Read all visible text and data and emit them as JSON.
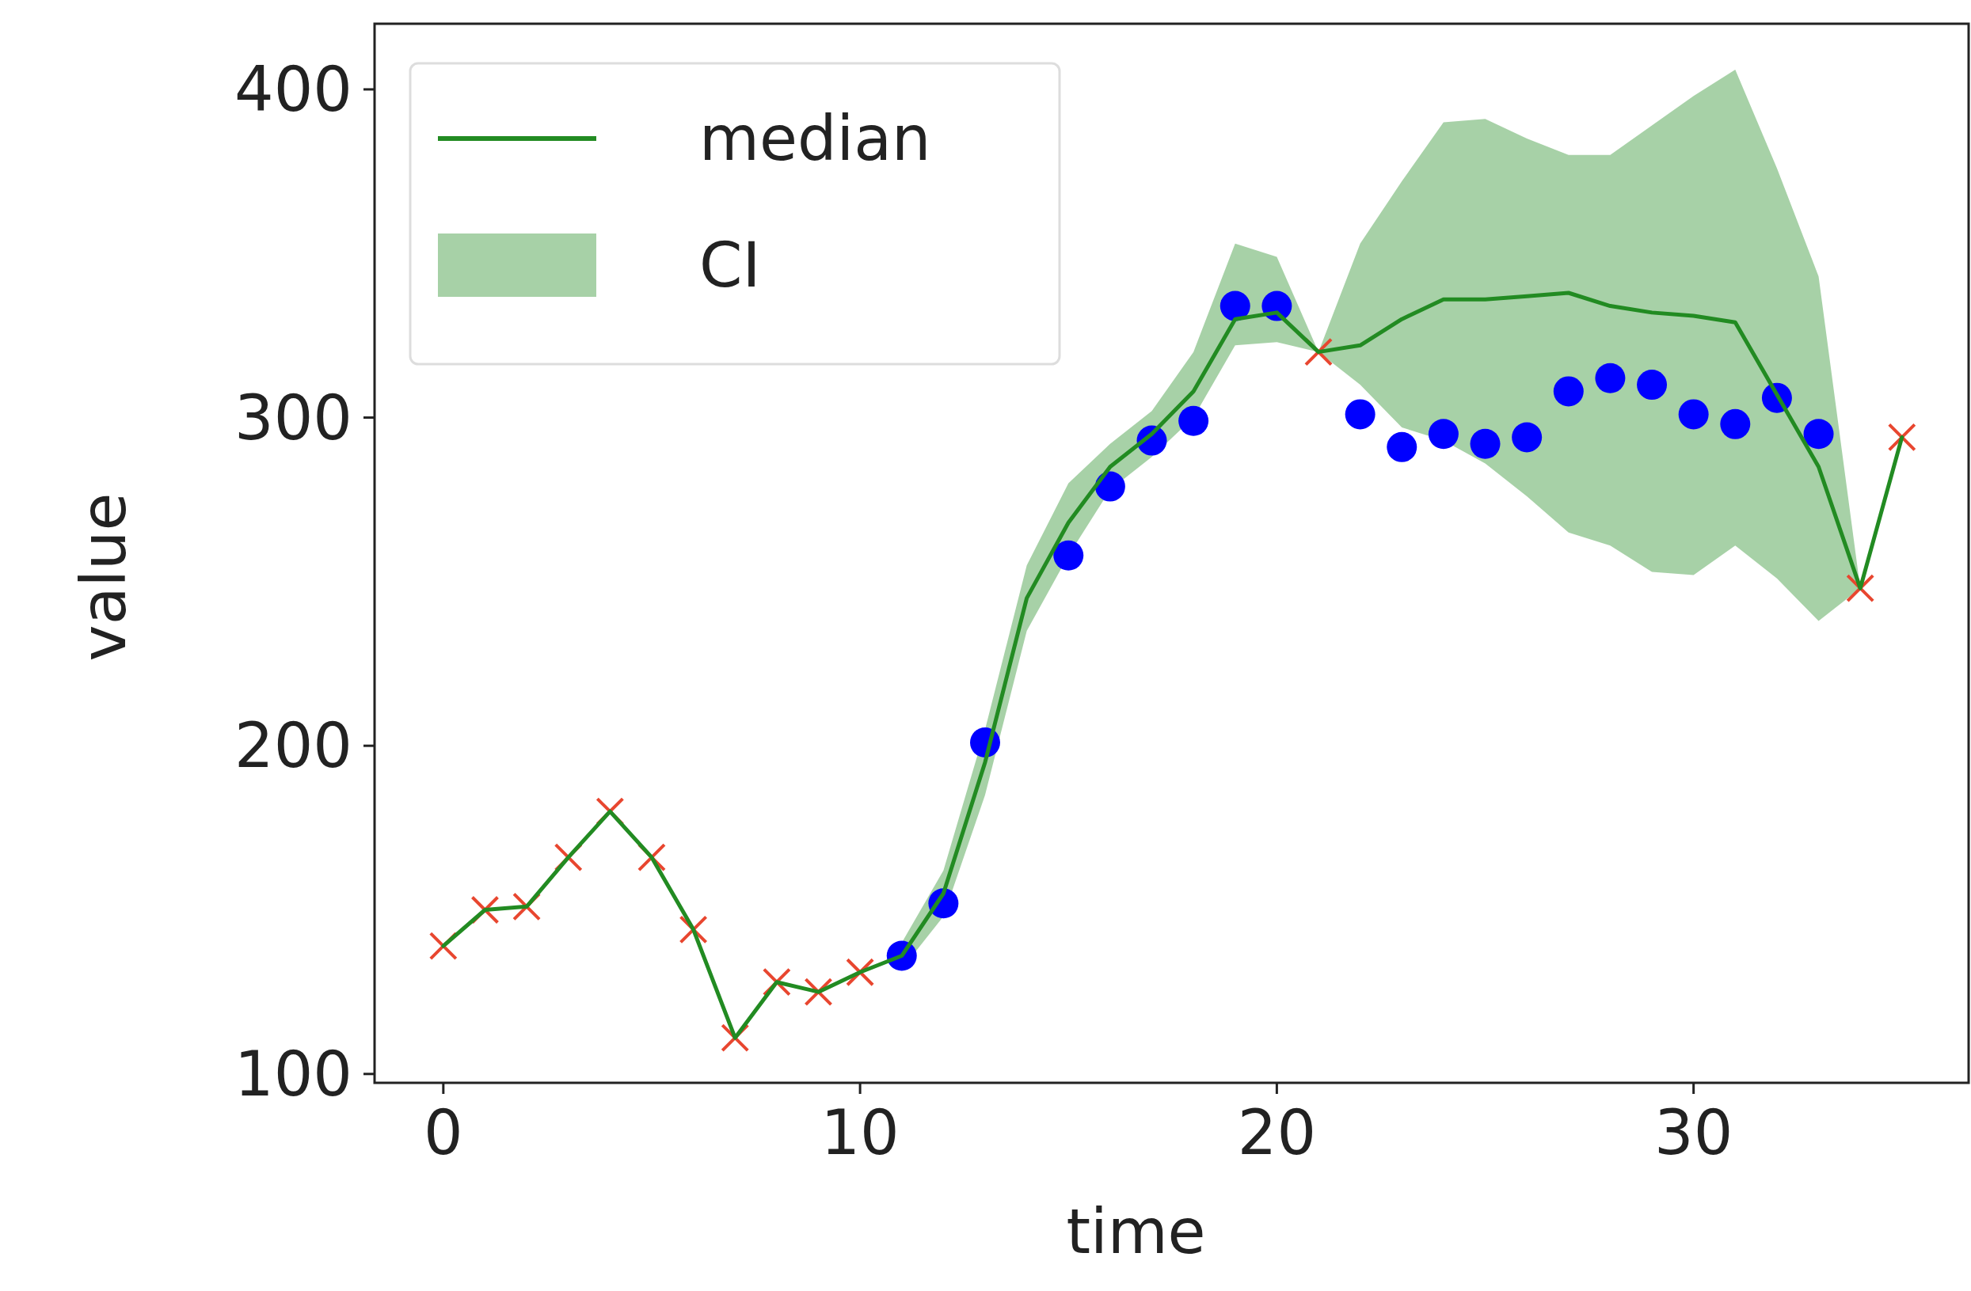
{
  "chart_data": {
    "type": "line",
    "xlabel": "time",
    "ylabel": "value",
    "xlim": [
      -1.65,
      36.6
    ],
    "ylim": [
      97.3,
      420
    ],
    "xticks": [
      0,
      10,
      20,
      30
    ],
    "yticks": [
      100,
      200,
      300,
      400
    ],
    "grid": false,
    "legend": "top left",
    "annotations": [
      "CI"
    ],
    "series": [
      {
        "type": "scatter",
        "color": "#0000ff",
        "marker": "circle",
        "x": [
          11,
          12,
          13,
          15,
          16,
          17,
          18,
          19,
          20,
          22,
          23,
          24,
          25,
          26,
          27,
          28,
          29,
          30,
          31,
          32,
          33
        ],
        "values": [
          136,
          152,
          201,
          258,
          279,
          293,
          299,
          334,
          334,
          301,
          291,
          295,
          292,
          294,
          308,
          312,
          310,
          301,
          298,
          306,
          295
        ]
      },
      {
        "type": "scatter",
        "color": "#e8462f",
        "marker": "cross",
        "x": [
          0,
          1,
          2,
          3,
          4,
          5,
          6,
          7,
          8,
          9,
          10,
          21,
          34,
          35
        ],
        "values": [
          139,
          150,
          151,
          166,
          180,
          166,
          144,
          111,
          128,
          125,
          131,
          320,
          248,
          294
        ]
      },
      {
        "name": "median",
        "color": "#228b22",
        "marker": "none",
        "x": [
          0,
          1,
          2,
          3,
          4,
          5,
          6,
          7,
          8,
          9,
          10,
          11,
          12,
          13,
          14,
          15,
          16,
          17,
          18,
          19,
          20,
          21,
          22,
          23,
          24,
          25,
          26,
          27,
          28,
          29,
          30,
          31,
          32,
          33,
          34,
          35
        ],
        "values": [
          139,
          150,
          151,
          166,
          180,
          166,
          144,
          111,
          128,
          125,
          131,
          136,
          155,
          195,
          245,
          268,
          285,
          295,
          308,
          330,
          332,
          320,
          322,
          330,
          336,
          336,
          337,
          338,
          334,
          332,
          331,
          329,
          307,
          285,
          248,
          294
        ],
        "lower": [
          null,
          null,
          null,
          null,
          null,
          null,
          null,
          null,
          null,
          null,
          null,
          132,
          148,
          185,
          235,
          258,
          278,
          288,
          300,
          322,
          323,
          320,
          310,
          297,
          293,
          286,
          276,
          265,
          261,
          253,
          252,
          261,
          251,
          238,
          248,
          null
        ],
        "upper": [
          null,
          null,
          null,
          null,
          null,
          null,
          null,
          null,
          null,
          null,
          null,
          140,
          162,
          205,
          255,
          280,
          292,
          302,
          320,
          353,
          349,
          320,
          353,
          372,
          390,
          391,
          385,
          380,
          380,
          389,
          398,
          406,
          376,
          343,
          248,
          null
        ]
      }
    ]
  }
}
